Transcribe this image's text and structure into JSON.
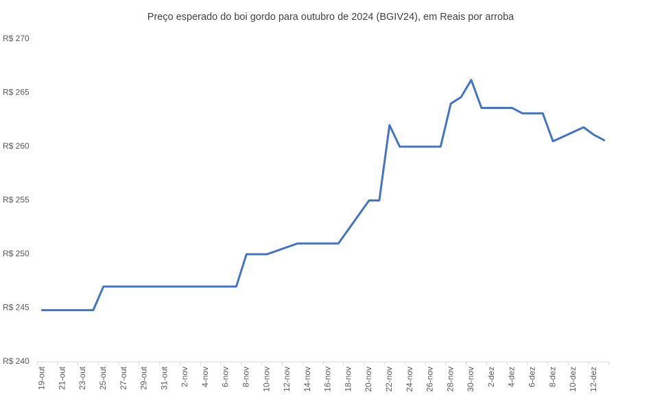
{
  "chart_data": {
    "type": "line",
    "title": "Preço esperado do boi gordo para outubro de 2024 (BGIV24), em Reais por arroba",
    "categories": [
      "19-out",
      null,
      "21-out",
      null,
      "23-out",
      null,
      "25-out",
      null,
      "27-out",
      null,
      "29-out",
      null,
      "31-out",
      null,
      "2-nov",
      null,
      "4-nov",
      null,
      "6-nov",
      null,
      "8-nov",
      null,
      "10-nov",
      null,
      "12-nov",
      null,
      "14-nov",
      null,
      "16-nov",
      null,
      "18-nov",
      null,
      "20-nov",
      null,
      "22-nov",
      null,
      "24-nov",
      null,
      "26-nov",
      null,
      "28-nov",
      null,
      "30-nov",
      null,
      "2-dez",
      null,
      "4-dez",
      null,
      "6-dez",
      null,
      "8-dez",
      null,
      "10-dez",
      null,
      "12-dez",
      null
    ],
    "values": [
      244.8,
      244.8,
      244.8,
      244.8,
      244.8,
      244.8,
      247,
      247,
      247,
      247,
      247,
      247,
      247,
      247,
      247,
      247,
      247,
      247,
      247,
      247,
      250,
      250,
      250,
      250.33,
      250.67,
      251,
      251,
      251,
      251,
      251,
      252.33,
      253.67,
      255,
      255,
      262,
      260,
      260,
      260,
      260,
      260,
      264,
      264.6,
      266.2,
      263.6,
      263.6,
      263.6,
      263.6,
      263.1,
      263.1,
      263.1,
      260.5,
      260.93,
      261.37,
      261.8,
      261.1,
      260.6
    ],
    "color": "#4472c4",
    "ylim": [
      240,
      270
    ],
    "yticks": [
      {
        "value": 240,
        "label": "R$ 240"
      },
      {
        "value": 245,
        "label": "R$ 245"
      },
      {
        "value": 250,
        "label": "R$ 250"
      },
      {
        "value": 255,
        "label": "R$ 255"
      },
      {
        "value": 260,
        "label": "R$ 260"
      },
      {
        "value": 265,
        "label": "R$ 265"
      },
      {
        "value": 270,
        "label": "R$ 270"
      }
    ],
    "grid": false
  }
}
